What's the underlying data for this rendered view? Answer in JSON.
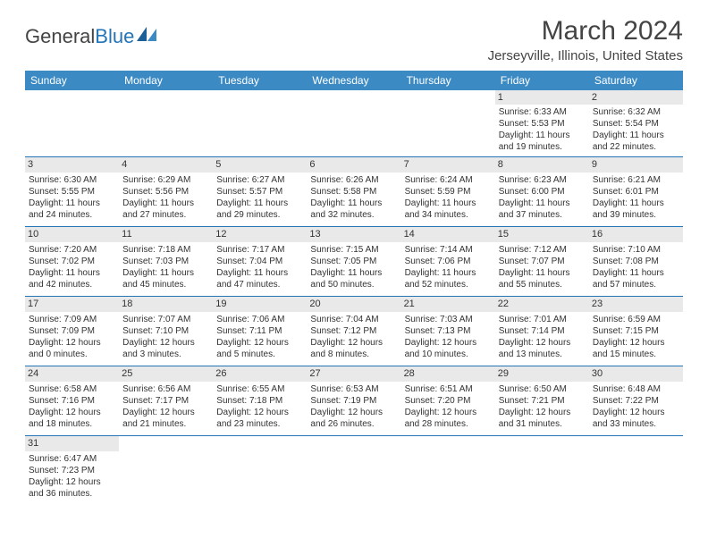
{
  "logo": {
    "text1": "General",
    "text2": "Blue"
  },
  "title": "March 2024",
  "location": "Jerseyville, Illinois, United States",
  "colors": {
    "header_bg": "#3b8ac4",
    "border": "#2474b8",
    "daynum_bg": "#e9e9e9",
    "text": "#333333",
    "background": "#ffffff"
  },
  "day_headers": [
    "Sunday",
    "Monday",
    "Tuesday",
    "Wednesday",
    "Thursday",
    "Friday",
    "Saturday"
  ],
  "weeks": [
    [
      null,
      null,
      null,
      null,
      null,
      {
        "n": "1",
        "sr": "Sunrise: 6:33 AM",
        "ss": "Sunset: 5:53 PM",
        "d1": "Daylight: 11 hours",
        "d2": "and 19 minutes."
      },
      {
        "n": "2",
        "sr": "Sunrise: 6:32 AM",
        "ss": "Sunset: 5:54 PM",
        "d1": "Daylight: 11 hours",
        "d2": "and 22 minutes."
      }
    ],
    [
      {
        "n": "3",
        "sr": "Sunrise: 6:30 AM",
        "ss": "Sunset: 5:55 PM",
        "d1": "Daylight: 11 hours",
        "d2": "and 24 minutes."
      },
      {
        "n": "4",
        "sr": "Sunrise: 6:29 AM",
        "ss": "Sunset: 5:56 PM",
        "d1": "Daylight: 11 hours",
        "d2": "and 27 minutes."
      },
      {
        "n": "5",
        "sr": "Sunrise: 6:27 AM",
        "ss": "Sunset: 5:57 PM",
        "d1": "Daylight: 11 hours",
        "d2": "and 29 minutes."
      },
      {
        "n": "6",
        "sr": "Sunrise: 6:26 AM",
        "ss": "Sunset: 5:58 PM",
        "d1": "Daylight: 11 hours",
        "d2": "and 32 minutes."
      },
      {
        "n": "7",
        "sr": "Sunrise: 6:24 AM",
        "ss": "Sunset: 5:59 PM",
        "d1": "Daylight: 11 hours",
        "d2": "and 34 minutes."
      },
      {
        "n": "8",
        "sr": "Sunrise: 6:23 AM",
        "ss": "Sunset: 6:00 PM",
        "d1": "Daylight: 11 hours",
        "d2": "and 37 minutes."
      },
      {
        "n": "9",
        "sr": "Sunrise: 6:21 AM",
        "ss": "Sunset: 6:01 PM",
        "d1": "Daylight: 11 hours",
        "d2": "and 39 minutes."
      }
    ],
    [
      {
        "n": "10",
        "sr": "Sunrise: 7:20 AM",
        "ss": "Sunset: 7:02 PM",
        "d1": "Daylight: 11 hours",
        "d2": "and 42 minutes."
      },
      {
        "n": "11",
        "sr": "Sunrise: 7:18 AM",
        "ss": "Sunset: 7:03 PM",
        "d1": "Daylight: 11 hours",
        "d2": "and 45 minutes."
      },
      {
        "n": "12",
        "sr": "Sunrise: 7:17 AM",
        "ss": "Sunset: 7:04 PM",
        "d1": "Daylight: 11 hours",
        "d2": "and 47 minutes."
      },
      {
        "n": "13",
        "sr": "Sunrise: 7:15 AM",
        "ss": "Sunset: 7:05 PM",
        "d1": "Daylight: 11 hours",
        "d2": "and 50 minutes."
      },
      {
        "n": "14",
        "sr": "Sunrise: 7:14 AM",
        "ss": "Sunset: 7:06 PM",
        "d1": "Daylight: 11 hours",
        "d2": "and 52 minutes."
      },
      {
        "n": "15",
        "sr": "Sunrise: 7:12 AM",
        "ss": "Sunset: 7:07 PM",
        "d1": "Daylight: 11 hours",
        "d2": "and 55 minutes."
      },
      {
        "n": "16",
        "sr": "Sunrise: 7:10 AM",
        "ss": "Sunset: 7:08 PM",
        "d1": "Daylight: 11 hours",
        "d2": "and 57 minutes."
      }
    ],
    [
      {
        "n": "17",
        "sr": "Sunrise: 7:09 AM",
        "ss": "Sunset: 7:09 PM",
        "d1": "Daylight: 12 hours",
        "d2": "and 0 minutes."
      },
      {
        "n": "18",
        "sr": "Sunrise: 7:07 AM",
        "ss": "Sunset: 7:10 PM",
        "d1": "Daylight: 12 hours",
        "d2": "and 3 minutes."
      },
      {
        "n": "19",
        "sr": "Sunrise: 7:06 AM",
        "ss": "Sunset: 7:11 PM",
        "d1": "Daylight: 12 hours",
        "d2": "and 5 minutes."
      },
      {
        "n": "20",
        "sr": "Sunrise: 7:04 AM",
        "ss": "Sunset: 7:12 PM",
        "d1": "Daylight: 12 hours",
        "d2": "and 8 minutes."
      },
      {
        "n": "21",
        "sr": "Sunrise: 7:03 AM",
        "ss": "Sunset: 7:13 PM",
        "d1": "Daylight: 12 hours",
        "d2": "and 10 minutes."
      },
      {
        "n": "22",
        "sr": "Sunrise: 7:01 AM",
        "ss": "Sunset: 7:14 PM",
        "d1": "Daylight: 12 hours",
        "d2": "and 13 minutes."
      },
      {
        "n": "23",
        "sr": "Sunrise: 6:59 AM",
        "ss": "Sunset: 7:15 PM",
        "d1": "Daylight: 12 hours",
        "d2": "and 15 minutes."
      }
    ],
    [
      {
        "n": "24",
        "sr": "Sunrise: 6:58 AM",
        "ss": "Sunset: 7:16 PM",
        "d1": "Daylight: 12 hours",
        "d2": "and 18 minutes."
      },
      {
        "n": "25",
        "sr": "Sunrise: 6:56 AM",
        "ss": "Sunset: 7:17 PM",
        "d1": "Daylight: 12 hours",
        "d2": "and 21 minutes."
      },
      {
        "n": "26",
        "sr": "Sunrise: 6:55 AM",
        "ss": "Sunset: 7:18 PM",
        "d1": "Daylight: 12 hours",
        "d2": "and 23 minutes."
      },
      {
        "n": "27",
        "sr": "Sunrise: 6:53 AM",
        "ss": "Sunset: 7:19 PM",
        "d1": "Daylight: 12 hours",
        "d2": "and 26 minutes."
      },
      {
        "n": "28",
        "sr": "Sunrise: 6:51 AM",
        "ss": "Sunset: 7:20 PM",
        "d1": "Daylight: 12 hours",
        "d2": "and 28 minutes."
      },
      {
        "n": "29",
        "sr": "Sunrise: 6:50 AM",
        "ss": "Sunset: 7:21 PM",
        "d1": "Daylight: 12 hours",
        "d2": "and 31 minutes."
      },
      {
        "n": "30",
        "sr": "Sunrise: 6:48 AM",
        "ss": "Sunset: 7:22 PM",
        "d1": "Daylight: 12 hours",
        "d2": "and 33 minutes."
      }
    ],
    [
      {
        "n": "31",
        "sr": "Sunrise: 6:47 AM",
        "ss": "Sunset: 7:23 PM",
        "d1": "Daylight: 12 hours",
        "d2": "and 36 minutes."
      },
      null,
      null,
      null,
      null,
      null,
      null
    ]
  ]
}
